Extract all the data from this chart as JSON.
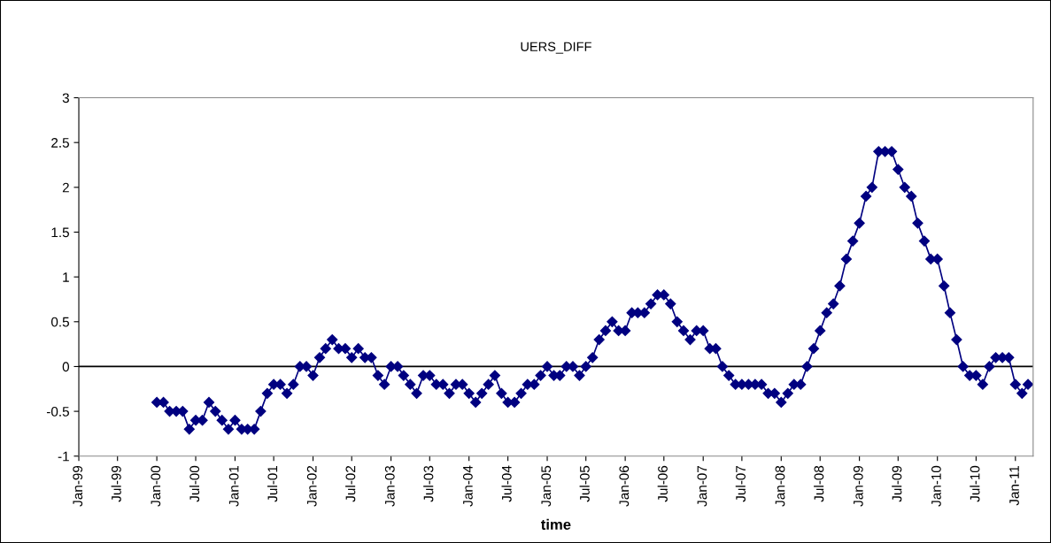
{
  "chart_data": {
    "type": "line",
    "title": "UERS_DIFF",
    "xlabel": "time",
    "x": [
      "2000-01",
      "2000-02",
      "2000-03",
      "2000-04",
      "2000-05",
      "2000-06",
      "2000-07",
      "2000-08",
      "2000-09",
      "2000-10",
      "2000-11",
      "2000-12",
      "2001-01",
      "2001-02",
      "2001-03",
      "2001-04",
      "2001-05",
      "2001-06",
      "2001-07",
      "2001-08",
      "2001-09",
      "2001-10",
      "2001-11",
      "2001-12",
      "2002-01",
      "2002-02",
      "2002-03",
      "2002-04",
      "2002-05",
      "2002-06",
      "2002-07",
      "2002-08",
      "2002-09",
      "2002-10",
      "2002-11",
      "2002-12",
      "2003-01",
      "2003-02",
      "2003-03",
      "2003-04",
      "2003-05",
      "2003-06",
      "2003-07",
      "2003-08",
      "2003-09",
      "2003-10",
      "2003-11",
      "2003-12",
      "2004-01",
      "2004-02",
      "2004-03",
      "2004-04",
      "2004-05",
      "2004-06",
      "2004-07",
      "2004-08",
      "2004-09",
      "2004-10",
      "2004-11",
      "2004-12",
      "2005-01",
      "2005-02",
      "2005-03",
      "2005-04",
      "2005-05",
      "2005-06",
      "2005-07",
      "2005-08",
      "2005-09",
      "2005-10",
      "2005-11",
      "2005-12",
      "2006-01",
      "2006-02",
      "2006-03",
      "2006-04",
      "2006-05",
      "2006-06",
      "2006-07",
      "2006-08",
      "2006-09",
      "2006-10",
      "2006-11",
      "2006-12",
      "2007-01",
      "2007-02",
      "2007-03",
      "2007-04",
      "2007-05",
      "2007-06",
      "2007-07",
      "2007-08",
      "2007-09",
      "2007-10",
      "2007-11",
      "2007-12",
      "2008-01",
      "2008-02",
      "2008-03",
      "2008-04",
      "2008-05",
      "2008-06",
      "2008-07",
      "2008-08",
      "2008-09",
      "2008-10",
      "2008-11",
      "2008-12",
      "2009-01",
      "2009-02",
      "2009-03",
      "2009-04",
      "2009-05",
      "2009-06",
      "2009-07",
      "2009-08",
      "2009-09",
      "2009-10",
      "2009-11",
      "2009-12",
      "2010-01",
      "2010-02",
      "2010-03",
      "2010-04",
      "2010-05",
      "2010-06",
      "2010-07",
      "2010-08",
      "2010-09",
      "2010-10",
      "2010-11",
      "2010-12",
      "2011-01",
      "2011-02",
      "2011-03"
    ],
    "series": [
      {
        "color": "#000080",
        "values": [
          -0.4,
          -0.4,
          -0.5,
          -0.5,
          -0.5,
          -0.7,
          -0.6,
          -0.6,
          -0.4,
          -0.5,
          -0.6,
          -0.7,
          -0.6,
          -0.7,
          -0.7,
          -0.7,
          -0.5,
          -0.3,
          -0.2,
          -0.2,
          -0.3,
          -0.2,
          0,
          0,
          -0.1,
          0.1,
          0.2,
          0.3,
          0.2,
          0.2,
          0.1,
          0.2,
          0.1,
          0.1,
          -0.1,
          -0.2,
          0,
          0,
          -0.1,
          -0.2,
          -0.3,
          -0.1,
          -0.1,
          -0.2,
          -0.2,
          -0.3,
          -0.2,
          -0.2,
          -0.3,
          -0.4,
          -0.3,
          -0.2,
          -0.1,
          -0.3,
          -0.4,
          -0.4,
          -0.3,
          -0.2,
          -0.2,
          -0.1,
          0,
          -0.1,
          -0.1,
          0,
          0,
          -0.1,
          0,
          0.1,
          0.3,
          0.4,
          0.5,
          0.4,
          0.4,
          0.6,
          0.6,
          0.6,
          0.7,
          0.8,
          0.8,
          0.7,
          0.5,
          0.4,
          0.3,
          0.4,
          0.4,
          0.2,
          0.2,
          0,
          -0.1,
          -0.2,
          -0.2,
          -0.2,
          -0.2,
          -0.2,
          -0.3,
          -0.3,
          -0.4,
          -0.3,
          -0.2,
          -0.2,
          0,
          0.2,
          0.4,
          0.6,
          0.7,
          0.9,
          1.2,
          1.4,
          1.6,
          1.9,
          2.0,
          2.4,
          2.4,
          2.4,
          2.2,
          2.0,
          1.9,
          1.6,
          1.4,
          1.2,
          1.2,
          0.9,
          0.6,
          0.3,
          0,
          -0.1,
          -0.1,
          -0.2,
          0,
          0.1,
          0.1,
          0.1,
          -0.2,
          -0.3,
          -0.2
        ]
      }
    ],
    "marker": "diamond",
    "line_style": "solid",
    "grid": false,
    "legend": false,
    "xlim": [
      "1999-01-01",
      "2011-03-25"
    ],
    "xticks": [
      {
        "value": "1999-01",
        "label": "Jan-99"
      },
      {
        "value": "1999-07",
        "label": "Jul-99"
      },
      {
        "value": "2000-01",
        "label": "Jan-00"
      },
      {
        "value": "2000-07",
        "label": "Jul-00"
      },
      {
        "value": "2001-01",
        "label": "Jan-01"
      },
      {
        "value": "2001-07",
        "label": "Jul-01"
      },
      {
        "value": "2002-01",
        "label": "Jan-02"
      },
      {
        "value": "2002-07",
        "label": "Jul-02"
      },
      {
        "value": "2003-01",
        "label": "Jan-03"
      },
      {
        "value": "2003-07",
        "label": "Jul-03"
      },
      {
        "value": "2004-01",
        "label": "Jan-04"
      },
      {
        "value": "2004-07",
        "label": "Jul-04"
      },
      {
        "value": "2005-01",
        "label": "Jan-05"
      },
      {
        "value": "2005-07",
        "label": "Jul-05"
      },
      {
        "value": "2006-01",
        "label": "Jan-06"
      },
      {
        "value": "2006-07",
        "label": "Jul-06"
      },
      {
        "value": "2007-01",
        "label": "Jan-07"
      },
      {
        "value": "2007-07",
        "label": "Jul-07"
      },
      {
        "value": "2008-01",
        "label": "Jan-08"
      },
      {
        "value": "2008-07",
        "label": "Jul-08"
      },
      {
        "value": "2009-01",
        "label": "Jan-09"
      },
      {
        "value": "2009-07",
        "label": "Jul-09"
      },
      {
        "value": "2010-01",
        "label": "Jan-10"
      },
      {
        "value": "2010-07",
        "label": "Jul-10"
      },
      {
        "value": "2011-01",
        "label": "Jan-11"
      }
    ],
    "ylim": [
      -1,
      3
    ],
    "yticks": [
      -1,
      -0.5,
      0,
      0.5,
      1,
      1.5,
      2,
      2.5,
      3
    ],
    "ref_lines": [
      {
        "axis": "y",
        "value": 0,
        "color": "#000000"
      }
    ]
  }
}
